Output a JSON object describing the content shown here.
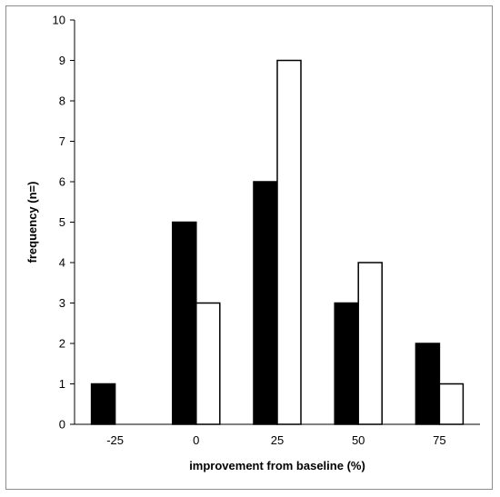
{
  "chart_data": {
    "type": "bar",
    "title": "",
    "xlabel": "improvement from baseline (%)",
    "ylabel": "frequency (n=)",
    "categories": [
      "-25",
      "0",
      "25",
      "50",
      "75"
    ],
    "series": [
      {
        "values": [
          1,
          5,
          6,
          3,
          2
        ],
        "color": "#000000"
      },
      {
        "values": [
          0,
          3,
          9,
          4,
          1
        ],
        "color": "#ffffff"
      }
    ],
    "ylim": [
      0,
      10
    ],
    "yticks": [
      0,
      1,
      2,
      3,
      4,
      5,
      6,
      7,
      8,
      9,
      10
    ],
    "grid": false,
    "legend": "none"
  }
}
